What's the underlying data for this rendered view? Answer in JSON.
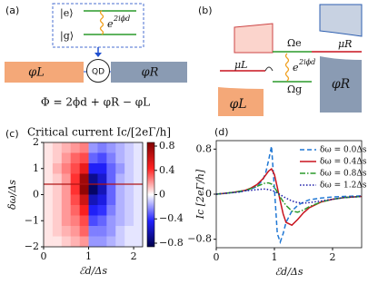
{
  "panel_a": {
    "label": "(a)",
    "ket_e": "|e⟩",
    "ket_g": "|g⟩",
    "exp_base": "e",
    "exp_power": "2iϕd",
    "dot": "QD",
    "lead_left": "φL",
    "lead_right": "φR",
    "formula": "Φ = 2ϕd + φR − φL"
  },
  "panel_b": {
    "label": "(b)",
    "omega_e": "Ωe",
    "omega_g": "Ωg",
    "mu_left": "μL",
    "mu_right": "μR",
    "exp_base": "e",
    "exp_power": "2iϕd",
    "lead_left": "φL",
    "lead_right": "φR"
  },
  "chart_data": [
    {
      "type": "heatmap",
      "panel_label": "(c)",
      "title": "Critical current Ic/[2eΓ/h]",
      "x_label": "ℰd/Δs",
      "y_label": "δω/Δs",
      "colormap": "seismic",
      "x": [
        0.1,
        0.3,
        0.5,
        0.7,
        0.9,
        1.1,
        1.3,
        1.5,
        1.7,
        1.9,
        2.1
      ],
      "y": [
        1.8,
        1.4,
        1.0,
        0.6,
        0.2,
        -0.2,
        -0.6,
        -1.0,
        -1.4,
        -1.8
      ],
      "z": [
        [
          0.05,
          0.1,
          0.15,
          0.2,
          0.25,
          -0.2,
          -0.25,
          -0.2,
          -0.15,
          -0.1,
          -0.05
        ],
        [
          0.05,
          0.1,
          0.2,
          0.3,
          0.35,
          -0.3,
          -0.35,
          -0.25,
          -0.15,
          -0.1,
          -0.05
        ],
        [
          0.05,
          0.15,
          0.25,
          0.35,
          0.5,
          -0.45,
          -0.45,
          -0.3,
          -0.2,
          -0.1,
          -0.05
        ],
        [
          0.05,
          0.1,
          0.2,
          0.4,
          0.75,
          -0.7,
          -0.55,
          -0.3,
          -0.15,
          -0.1,
          -0.05
        ],
        [
          0.05,
          0.1,
          0.2,
          0.4,
          0.8,
          -0.8,
          -0.6,
          -0.3,
          -0.15,
          -0.1,
          -0.05
        ],
        [
          0.05,
          0.1,
          0.2,
          0.35,
          0.6,
          -0.6,
          -0.5,
          -0.3,
          -0.15,
          -0.1,
          -0.05
        ],
        [
          0.05,
          0.1,
          0.2,
          0.3,
          0.45,
          -0.45,
          -0.4,
          -0.25,
          -0.15,
          -0.1,
          -0.05
        ],
        [
          0.05,
          0.1,
          0.2,
          0.25,
          0.35,
          -0.35,
          -0.3,
          -0.2,
          -0.15,
          -0.1,
          -0.05
        ],
        [
          0.05,
          0.1,
          0.15,
          0.2,
          0.3,
          -0.25,
          -0.25,
          -0.2,
          -0.1,
          -0.05,
          -0.05
        ],
        [
          0.05,
          0.05,
          0.1,
          0.15,
          0.2,
          -0.2,
          -0.2,
          -0.15,
          -0.1,
          -0.05,
          -0.05
        ]
      ],
      "marker_y": 0.4,
      "marker_color": "#b01515",
      "xlim": [
        0,
        2.2
      ],
      "xticks": [
        0,
        1,
        2
      ],
      "ylim": [
        -2,
        2
      ],
      "yticks": [
        {
          "value": -2,
          "label": "−2"
        },
        {
          "value": -1,
          "label": "−1"
        },
        0,
        1,
        2
      ],
      "zlim": [
        -0.86,
        0.86
      ],
      "zticks": [
        0.8,
        0.4,
        0,
        {
          "value": -0.4,
          "label": "−0.4"
        },
        {
          "value": -0.8,
          "label": "−0.8"
        }
      ]
    },
    {
      "type": "line",
      "panel_label": "(d)",
      "x_label": "ℰd/Δs",
      "y_label": "Ic [2eΓ/h]",
      "legend": "upper right",
      "x": [
        0,
        0.2,
        0.4,
        0.5,
        0.6,
        0.7,
        0.8,
        0.85,
        0.9,
        0.95,
        1.0,
        1.05,
        1.1,
        1.15,
        1.2,
        1.3,
        1.4,
        1.5,
        1.6,
        1.8,
        2.0,
        2.2,
        2.5
      ],
      "series": [
        {
          "name": "δω = 0.0Δs",
          "color": "#1f77d4",
          "dash": "dashed",
          "values": [
            0,
            0.02,
            0.04,
            0.06,
            0.09,
            0.14,
            0.25,
            0.38,
            0.6,
            0.85,
            0.1,
            -0.7,
            -0.85,
            -0.7,
            -0.5,
            -0.3,
            -0.2,
            -0.14,
            -0.1,
            -0.07,
            -0.05,
            -0.04,
            -0.03
          ]
        },
        {
          "name": "δω = 0.4Δs",
          "color": "#c8141e",
          "dash": "solid",
          "values": [
            0,
            0.02,
            0.05,
            0.07,
            0.11,
            0.17,
            0.27,
            0.34,
            0.41,
            0.45,
            0.35,
            0.12,
            -0.12,
            -0.35,
            -0.5,
            -0.55,
            -0.45,
            -0.33,
            -0.24,
            -0.14,
            -0.09,
            -0.06,
            -0.04
          ]
        },
        {
          "name": "δω = 0.8Δs",
          "color": "#2a9a2a",
          "dash": "dashdot",
          "values": [
            0,
            0.02,
            0.05,
            0.07,
            0.1,
            0.14,
            0.18,
            0.2,
            0.2,
            0.18,
            0.12,
            0.04,
            -0.05,
            -0.13,
            -0.2,
            -0.3,
            -0.32,
            -0.28,
            -0.22,
            -0.14,
            -0.09,
            -0.06,
            -0.04
          ]
        },
        {
          "name": "δω = 1.2Δs",
          "color": "#1c1ca8",
          "dash": "dotted",
          "values": [
            0,
            0.02,
            0.04,
            0.06,
            0.07,
            0.08,
            0.09,
            0.09,
            0.08,
            0.07,
            0.05,
            0.02,
            -0.01,
            -0.04,
            -0.07,
            -0.12,
            -0.15,
            -0.16,
            -0.15,
            -0.12,
            -0.09,
            -0.06,
            -0.04
          ]
        }
      ],
      "xlim": [
        0,
        2.5
      ],
      "xticks": [
        0,
        1,
        2
      ],
      "ylim": [
        -0.95,
        0.95
      ],
      "yticks": [
        {
          "value": -0.8,
          "label": "−0.8"
        },
        0,
        0.8
      ]
    }
  ]
}
